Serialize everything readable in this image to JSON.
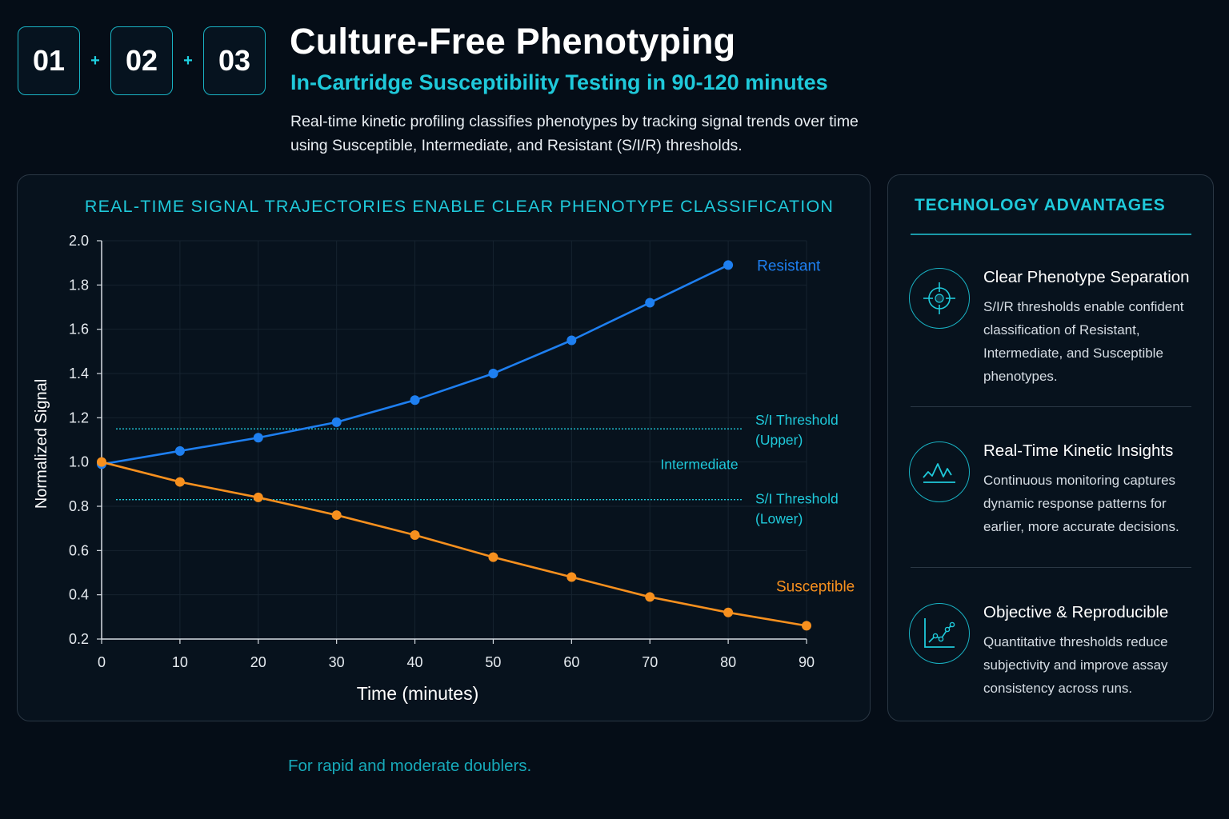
{
  "steps": {
    "items": [
      "01",
      "02",
      "03"
    ],
    "separator": "+"
  },
  "header": {
    "title": "Culture-Free Phenotyping",
    "subtitle": "In-Cartridge Susceptibility Testing in 90-120 minutes",
    "description": "Real-time kinetic profiling classifies phenotypes by tracking signal trends over time using Susceptible, Intermediate, and Resistant (S/I/R) thresholds."
  },
  "chart_panel": {
    "heading": "REAL-TIME SIGNAL TRAJECTORIES ENABLE CLEAR PHENOTYPE CLASSIFICATION"
  },
  "chart_data": {
    "type": "line",
    "title": "REAL-TIME SIGNAL TRAJECTORIES ENABLE CLEAR PHENOTYPE CLASSIFICATION",
    "xlabel": "Time (minutes)",
    "ylabel": "Normalized Signal",
    "xlim": [
      0,
      90
    ],
    "ylim": [
      0.2,
      2.0
    ],
    "x_ticks": [
      0,
      10,
      20,
      30,
      40,
      50,
      60,
      70,
      80,
      90
    ],
    "y_ticks": [
      "0.2",
      "0.4",
      "0.6",
      "0.8",
      "1.0",
      "1.2",
      "1.4",
      "1.6",
      "1.8",
      "2.0"
    ],
    "grid": true,
    "series": [
      {
        "name": "Resistant",
        "color": "#1e7ff0",
        "x": [
          0,
          10,
          20,
          30,
          40,
          50,
          60,
          70,
          80
        ],
        "y": [
          0.99,
          1.05,
          1.11,
          1.18,
          1.28,
          1.4,
          1.55,
          1.72,
          1.89
        ]
      },
      {
        "name": "Susceptible",
        "color": "#f7901e",
        "x": [
          0,
          10,
          20,
          30,
          40,
          50,
          60,
          70,
          80,
          90
        ],
        "y": [
          1.0,
          0.91,
          0.84,
          0.76,
          0.67,
          0.57,
          0.48,
          0.39,
          0.32,
          0.26
        ]
      }
    ],
    "thresholds": [
      {
        "label_line1": "S/I Threshold",
        "label_line2": "(Upper)",
        "y": 1.15
      },
      {
        "label_line1": "S/I Threshold",
        "label_line2": "(Lower)",
        "y": 0.83
      }
    ],
    "zone_label": {
      "text": "Intermediate",
      "y": 0.99
    },
    "accent_color": "#1fc9da"
  },
  "advantages": {
    "heading": "TECHNOLOGY ADVANTAGES",
    "items": [
      {
        "icon": "target-icon",
        "title": "Clear Phenotype Separation",
        "text": "S/I/R thresholds enable confident classification of Resistant, Intermediate, and Susceptible phenotypes."
      },
      {
        "icon": "kinetic-wave-icon",
        "title": "Real-Time Kinetic Insights",
        "text": "Continuous monitoring captures dynamic response patterns for earlier, more accurate decisions."
      },
      {
        "icon": "trend-chart-icon",
        "title": "Objective & Reproducible",
        "text": "Quantitative thresholds reduce subjectivity and improve assay consistency across runs."
      }
    ]
  },
  "footnote": "For rapid and moderate doublers."
}
